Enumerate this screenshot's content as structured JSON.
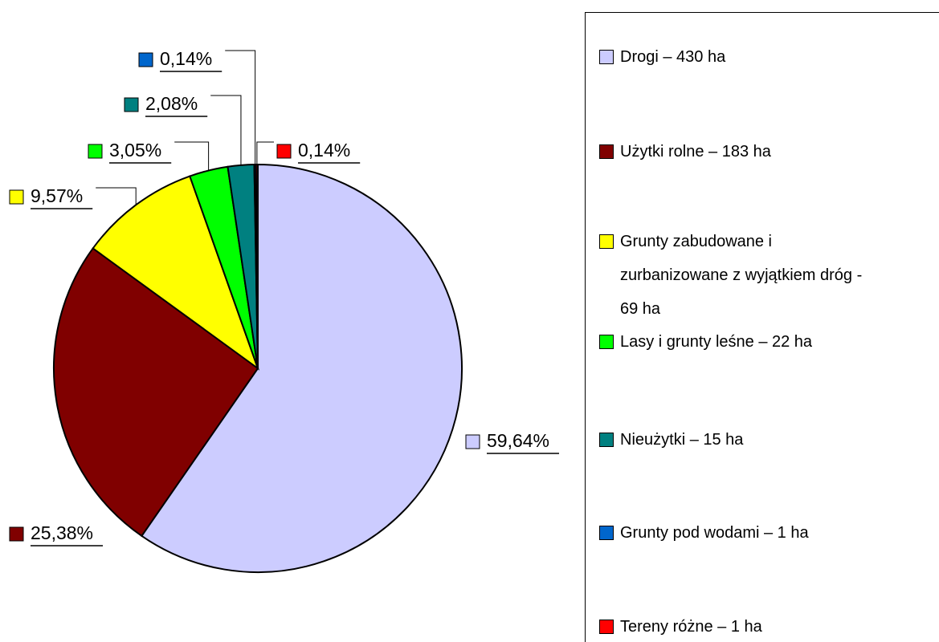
{
  "chart_data": {
    "type": "pie",
    "categories": [
      "Drogi – 430 ha",
      "Użytki rolne – 183 ha",
      "Grunty zabudowane i zurbanizowane z wyjątkiem dróg  - 69 ha",
      "Lasy i grunty leśne – 22 ha",
      "Nieużytki – 15 ha",
      "Grunty pod wodami – 1 ha",
      "Tereny różne – 1 ha"
    ],
    "values": [
      59.64,
      25.38,
      9.57,
      3.05,
      2.08,
      0.14,
      0.14
    ],
    "value_labels": [
      "59,64%",
      "25,38%",
      "9,57%",
      "3,05%",
      "2,08%",
      "0,14%",
      "0,14%"
    ],
    "colors": [
      "#ccccff",
      "#800000",
      "#ffff00",
      "#00ff00",
      "#008080",
      "#0066cc",
      "#ff0000"
    ]
  }
}
